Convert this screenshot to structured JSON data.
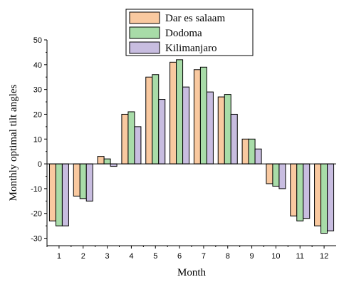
{
  "chart_data": {
    "type": "bar",
    "categories": [
      "1",
      "2",
      "3",
      "4",
      "5",
      "6",
      "7",
      "8",
      "9",
      "10",
      "11",
      "12"
    ],
    "series": [
      {
        "name": "Dar es salaam",
        "color": "#f9c9a0",
        "values": [
          -23,
          -13,
          3,
          20,
          35,
          41,
          38,
          27,
          10,
          -8,
          -21,
          -25
        ]
      },
      {
        "name": "Dodoma",
        "color": "#a8dca8",
        "values": [
          -25,
          -14,
          2,
          21,
          36,
          42,
          39,
          28,
          10,
          -9,
          -23,
          -28
        ]
      },
      {
        "name": "Kilimanjaro",
        "color": "#c8bde0",
        "values": [
          -25,
          -15,
          -1,
          15,
          26,
          31,
          29,
          20,
          6,
          -10,
          -22,
          -27
        ]
      }
    ],
    "yticks": [
      "-30",
      "-20",
      "-10",
      "0",
      "10",
      "20",
      "30",
      "40",
      "50"
    ],
    "xlabel": "Month",
    "ylabel": "Monthly optimal tilt angles",
    "ylim": [
      -33,
      50
    ],
    "legend_position": "top-center",
    "grid": false
  }
}
